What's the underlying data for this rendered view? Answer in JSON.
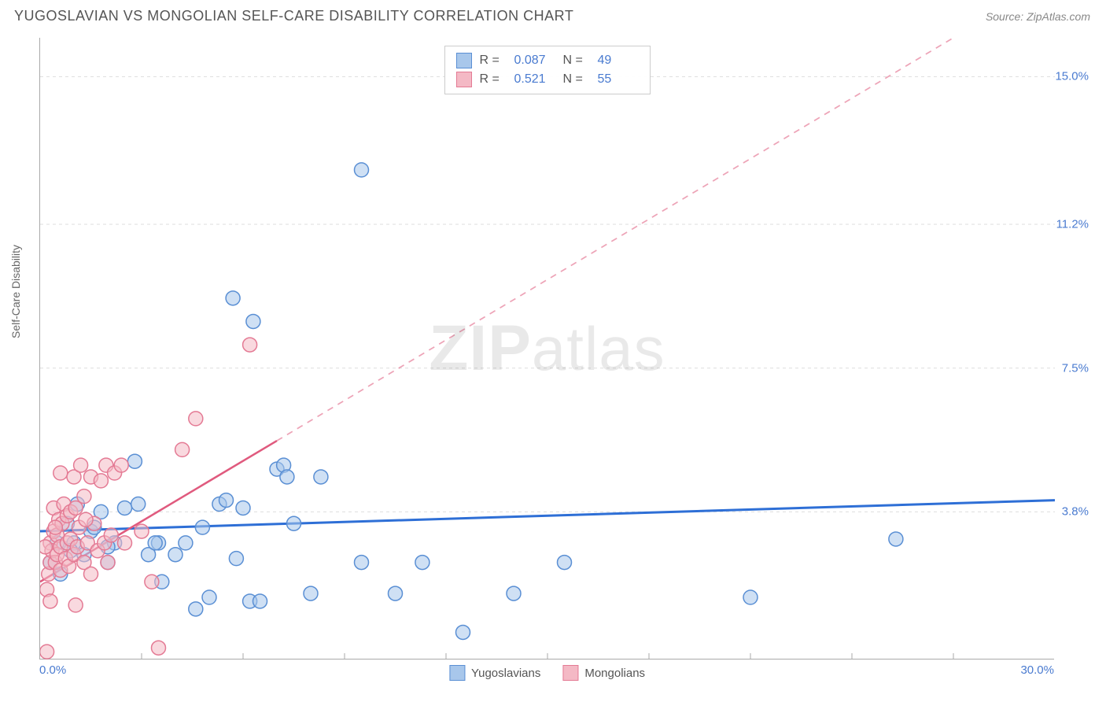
{
  "header": {
    "title": "YUGOSLAVIAN VS MONGOLIAN SELF-CARE DISABILITY CORRELATION CHART",
    "source": "Source: ZipAtlas.com"
  },
  "chart": {
    "type": "scatter",
    "ylabel": "Self-Care Disability",
    "xlim": [
      0,
      30
    ],
    "ylim": [
      0,
      16
    ],
    "x_ticks": [
      {
        "value": 0.0,
        "label": "0.0%"
      },
      {
        "value": 30.0,
        "label": "30.0%"
      }
    ],
    "y_ticks": [
      {
        "value": 3.8,
        "label": "3.8%"
      },
      {
        "value": 7.5,
        "label": "7.5%"
      },
      {
        "value": 11.2,
        "label": "11.2%"
      },
      {
        "value": 15.0,
        "label": "15.0%"
      }
    ],
    "gridline_color": "#dddddd",
    "gridline_dash": "4,4",
    "axis_color": "#aaaaaa",
    "tick_label_color": "#4a7bd0",
    "background_color": "#ffffff",
    "marker_radius": 9,
    "marker_stroke_width": 1.5,
    "watermark": {
      "strong": "ZIP",
      "light": "atlas"
    },
    "series": [
      {
        "name": "Yugoslavians",
        "fill_color": "#a8c7eb",
        "stroke_color": "#5a8fd4",
        "fill_opacity": 0.55,
        "trend": {
          "x0": 0,
          "y0": 3.3,
          "x1": 30,
          "y1": 4.1,
          "solid_until_x": 30,
          "color": "#2e6fd6",
          "width": 3
        },
        "stats": {
          "R": "0.087",
          "N": "49"
        },
        "points": [
          [
            0.3,
            2.5
          ],
          [
            0.5,
            3.0
          ],
          [
            0.6,
            2.2
          ],
          [
            0.8,
            3.5
          ],
          [
            1.0,
            3.0
          ],
          [
            1.1,
            4.0
          ],
          [
            1.3,
            2.7
          ],
          [
            1.5,
            3.3
          ],
          [
            1.8,
            3.8
          ],
          [
            2.0,
            2.5
          ],
          [
            2.2,
            3.0
          ],
          [
            2.5,
            3.9
          ],
          [
            2.8,
            5.1
          ],
          [
            2.9,
            4.0
          ],
          [
            3.2,
            2.7
          ],
          [
            3.5,
            3.0
          ],
          [
            3.6,
            2.0
          ],
          [
            4.0,
            2.7
          ],
          [
            4.3,
            3.0
          ],
          [
            4.6,
            1.3
          ],
          [
            5.0,
            1.6
          ],
          [
            5.3,
            4.0
          ],
          [
            5.5,
            4.1
          ],
          [
            5.8,
            2.6
          ],
          [
            6.0,
            3.9
          ],
          [
            6.2,
            1.5
          ],
          [
            5.7,
            9.3
          ],
          [
            6.3,
            8.7
          ],
          [
            6.5,
            1.5
          ],
          [
            7.0,
            4.9
          ],
          [
            7.2,
            5.0
          ],
          [
            7.3,
            4.7
          ],
          [
            7.5,
            3.5
          ],
          [
            8.0,
            1.7
          ],
          [
            8.3,
            4.7
          ],
          [
            9.5,
            2.5
          ],
          [
            9.5,
            12.6
          ],
          [
            10.5,
            1.7
          ],
          [
            11.3,
            2.5
          ],
          [
            12.5,
            0.7
          ],
          [
            14.0,
            1.7
          ],
          [
            15.5,
            2.5
          ],
          [
            21.0,
            1.6
          ],
          [
            25.3,
            3.1
          ],
          [
            3.4,
            3.0
          ],
          [
            4.8,
            3.4
          ],
          [
            2.0,
            2.9
          ],
          [
            1.6,
            3.4
          ],
          [
            0.9,
            2.8
          ]
        ]
      },
      {
        "name": "Mongolians",
        "fill_color": "#f4b9c5",
        "stroke_color": "#e47a94",
        "fill_opacity": 0.55,
        "trend": {
          "x0": 0,
          "y0": 2.0,
          "x1": 27,
          "y1": 16.0,
          "solid_until_x": 7.0,
          "color": "#e05a7e",
          "width": 2.5
        },
        "stats": {
          "R": "0.521",
          "N": "55"
        },
        "points": [
          [
            0.2,
            1.8
          ],
          [
            0.25,
            2.2
          ],
          [
            0.3,
            2.5
          ],
          [
            0.3,
            3.0
          ],
          [
            0.35,
            2.8
          ],
          [
            0.4,
            3.3
          ],
          [
            0.4,
            3.9
          ],
          [
            0.45,
            2.5
          ],
          [
            0.5,
            2.7
          ],
          [
            0.5,
            3.2
          ],
          [
            0.55,
            3.6
          ],
          [
            0.6,
            2.3
          ],
          [
            0.6,
            2.9
          ],
          [
            0.65,
            3.5
          ],
          [
            0.7,
            4.0
          ],
          [
            0.75,
            2.6
          ],
          [
            0.8,
            3.0
          ],
          [
            0.8,
            3.7
          ],
          [
            0.85,
            2.4
          ],
          [
            0.9,
            3.1
          ],
          [
            0.9,
            3.8
          ],
          [
            1.0,
            2.7
          ],
          [
            1.0,
            4.7
          ],
          [
            1.05,
            1.4
          ],
          [
            1.1,
            2.9
          ],
          [
            1.15,
            3.4
          ],
          [
            1.2,
            5.0
          ],
          [
            1.3,
            2.5
          ],
          [
            1.3,
            4.2
          ],
          [
            1.4,
            3.0
          ],
          [
            1.5,
            2.2
          ],
          [
            1.5,
            4.7
          ],
          [
            1.6,
            3.5
          ],
          [
            1.7,
            2.8
          ],
          [
            1.8,
            4.6
          ],
          [
            1.9,
            3.0
          ],
          [
            1.95,
            5.0
          ],
          [
            2.0,
            2.5
          ],
          [
            2.1,
            3.2
          ],
          [
            2.2,
            4.8
          ],
          [
            2.4,
            5.0
          ],
          [
            2.5,
            3.0
          ],
          [
            3.0,
            3.3
          ],
          [
            3.3,
            2.0
          ],
          [
            3.5,
            0.3
          ],
          [
            4.2,
            5.4
          ],
          [
            4.6,
            6.2
          ],
          [
            6.2,
            8.1
          ],
          [
            0.2,
            0.2
          ],
          [
            0.6,
            4.8
          ],
          [
            1.05,
            3.9
          ],
          [
            0.15,
            2.9
          ],
          [
            0.45,
            3.4
          ],
          [
            0.3,
            1.5
          ],
          [
            1.35,
            3.6
          ]
        ]
      }
    ],
    "bottom_legend": [
      {
        "label": "Yugoslavians",
        "fill": "#a8c7eb",
        "stroke": "#5a8fd4"
      },
      {
        "label": "Mongolians",
        "fill": "#f4b9c5",
        "stroke": "#e47a94"
      }
    ]
  }
}
